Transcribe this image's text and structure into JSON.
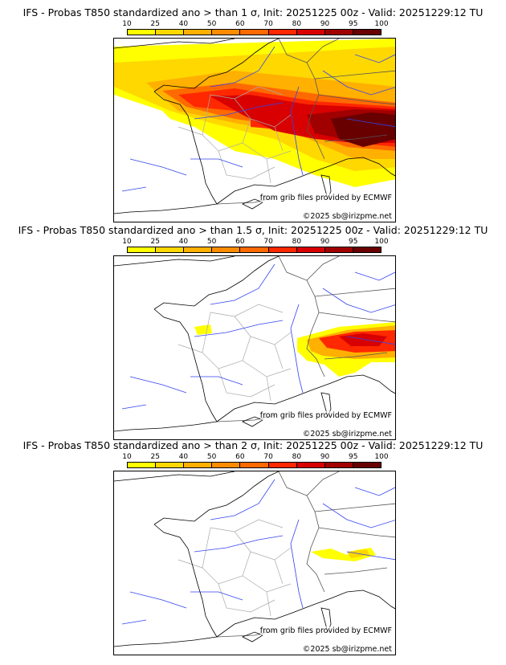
{
  "panels": [
    {
      "title": "IFS - Probas T850  standardized ano > than 1 σ, Init: 20251225 00z - Valid: 20251229:12 TU",
      "level": "1"
    },
    {
      "title": "IFS - Probas T850  standardized ano > than 1.5 σ, Init: 20251225 00z - Valid: 20251229:12 TU",
      "level": "1.5"
    },
    {
      "title": "IFS - Probas T850  standardized ano > than 2 σ, Init: 20251225 00z - Valid: 20251229:12 TU",
      "level": "2"
    }
  ],
  "colorbar": {
    "ticks": [
      "10",
      "25",
      "40",
      "50",
      "60",
      "70",
      "80",
      "90",
      "95",
      "100"
    ],
    "colors": [
      "#ffff00",
      "#ffd800",
      "#ffb000",
      "#ff8c00",
      "#ff6a00",
      "#ff2800",
      "#d80000",
      "#a00000",
      "#680000"
    ]
  },
  "credit": {
    "source": "from grib files provided by ECMWF",
    "copyright": "©2025 sb@irizpme.net"
  }
}
